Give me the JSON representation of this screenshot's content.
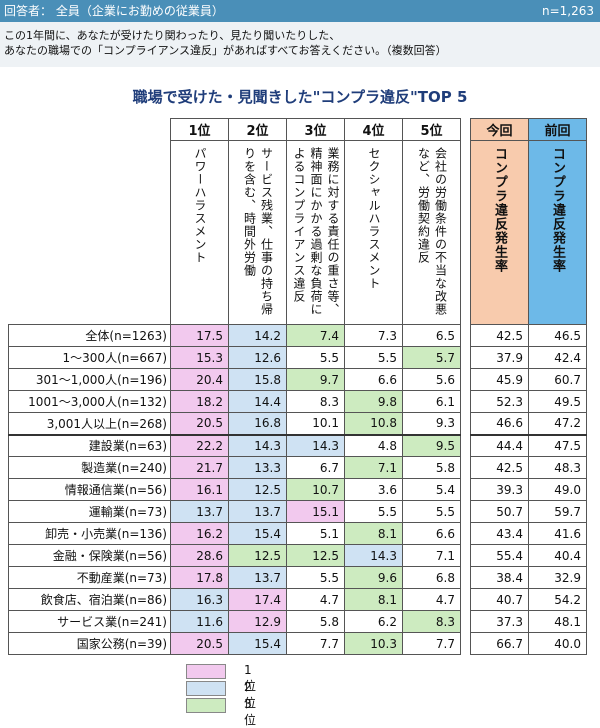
{
  "header": {
    "respondents": "回答者： 全員（企業にお勤めの従業員）",
    "n_total": "n=1,263"
  },
  "question": {
    "line1": "この1年間に、あなたが受けたり関わったり、見たり聞いたりした、",
    "line2": "あなたの職場での「コンプライアンス違反」があればすべてお答えください。（複数回答）"
  },
  "chart_data": {
    "type": "table",
    "title": "職場で受けた・見聞きした\"コンプラ違反\"TOP 5",
    "rank_headers": [
      "1位",
      "2位",
      "3位",
      "4位",
      "5位"
    ],
    "columns": [
      "パワーハラスメント",
      "サービス残業、仕事の持ち帰りを含む、時間外労働",
      "業務に対する責任の重さ等、精神面にかかる過剰な負荷によるコンプライアンス違反",
      "セクシャルハラスメント",
      "会社の労働条件の不当な改悪など、労働契約違反"
    ],
    "rate_headers": [
      "今回",
      "前回"
    ],
    "rate_labels": [
      "コンプラ違反発生率",
      "コンプラ違反発生率"
    ],
    "rows": [
      {
        "label": "全体(n=1263)",
        "values": [
          "17.5",
          "14.2",
          "7.4",
          "7.3",
          "6.5"
        ],
        "ranks": [
          1,
          2,
          3,
          0,
          0
        ],
        "now": "42.5",
        "prev": "46.5",
        "sep": false
      },
      {
        "label": "1～300人(n=667)",
        "values": [
          "15.3",
          "12.6",
          "5.5",
          "5.5",
          "5.7"
        ],
        "ranks": [
          1,
          2,
          0,
          0,
          3
        ],
        "now": "37.9",
        "prev": "42.4",
        "sep": false
      },
      {
        "label": "301～1,000人(n=196)",
        "values": [
          "20.4",
          "15.8",
          "9.7",
          "6.6",
          "5.6"
        ],
        "ranks": [
          1,
          2,
          3,
          0,
          0
        ],
        "now": "45.9",
        "prev": "60.7",
        "sep": false
      },
      {
        "label": "1001～3,000人(n=132)",
        "values": [
          "18.2",
          "14.4",
          "8.3",
          "9.8",
          "6.1"
        ],
        "ranks": [
          1,
          2,
          0,
          3,
          0
        ],
        "now": "52.3",
        "prev": "49.5",
        "sep": false
      },
      {
        "label": "3,001人以上(n=268)",
        "values": [
          "20.5",
          "16.8",
          "10.1",
          "10.8",
          "9.3"
        ],
        "ranks": [
          1,
          2,
          0,
          3,
          0
        ],
        "now": "46.6",
        "prev": "47.2",
        "sep": false
      },
      {
        "label": "建設業(n=63)",
        "values": [
          "22.2",
          "14.3",
          "14.3",
          "4.8",
          "9.5"
        ],
        "ranks": [
          1,
          2,
          2,
          0,
          3
        ],
        "now": "44.4",
        "prev": "47.5",
        "sep": true
      },
      {
        "label": "製造業(n=240)",
        "values": [
          "21.7",
          "13.3",
          "6.7",
          "7.1",
          "5.8"
        ],
        "ranks": [
          1,
          2,
          0,
          3,
          0
        ],
        "now": "42.5",
        "prev": "48.3",
        "sep": false
      },
      {
        "label": "情報通信業(n=56)",
        "values": [
          "16.1",
          "12.5",
          "10.7",
          "3.6",
          "5.4"
        ],
        "ranks": [
          1,
          2,
          3,
          0,
          0
        ],
        "now": "39.3",
        "prev": "49.0",
        "sep": false
      },
      {
        "label": "運輸業(n=73)",
        "values": [
          "13.7",
          "13.7",
          "15.1",
          "5.5",
          "5.5"
        ],
        "ranks": [
          2,
          2,
          1,
          0,
          0
        ],
        "now": "50.7",
        "prev": "59.7",
        "sep": false
      },
      {
        "label": "卸売・小売業(n=136)",
        "values": [
          "16.2",
          "15.4",
          "5.1",
          "8.1",
          "6.6"
        ],
        "ranks": [
          1,
          2,
          0,
          3,
          0
        ],
        "now": "43.4",
        "prev": "41.6",
        "sep": false
      },
      {
        "label": "金融・保険業(n=56)",
        "values": [
          "28.6",
          "12.5",
          "12.5",
          "14.3",
          "7.1"
        ],
        "ranks": [
          1,
          3,
          3,
          2,
          0
        ],
        "now": "55.4",
        "prev": "40.4",
        "sep": false
      },
      {
        "label": "不動産業(n=73)",
        "values": [
          "17.8",
          "13.7",
          "5.5",
          "9.6",
          "6.8"
        ],
        "ranks": [
          1,
          2,
          0,
          3,
          0
        ],
        "now": "38.4",
        "prev": "32.9",
        "sep": false
      },
      {
        "label": "飲食店、宿泊業(n=86)",
        "values": [
          "16.3",
          "17.4",
          "4.7",
          "8.1",
          "4.7"
        ],
        "ranks": [
          2,
          1,
          0,
          3,
          0
        ],
        "now": "40.7",
        "prev": "54.2",
        "sep": false
      },
      {
        "label": "サービス業(n=241)",
        "values": [
          "11.6",
          "12.9",
          "5.8",
          "6.2",
          "8.3"
        ],
        "ranks": [
          2,
          1,
          0,
          0,
          3
        ],
        "now": "37.3",
        "prev": "48.1",
        "sep": false
      },
      {
        "label": "国家公務(n=39)",
        "values": [
          "20.5",
          "15.4",
          "7.7",
          "10.3",
          "7.7"
        ],
        "ranks": [
          1,
          2,
          0,
          3,
          0
        ],
        "now": "66.7",
        "prev": "40.0",
        "sep": false
      }
    ],
    "legend": [
      "1位",
      "2位",
      "3位"
    ]
  },
  "colors": {
    "rank1": "#f2c9ee",
    "rank2": "#cfe2f3",
    "rank3": "#cdebc0",
    "now_header": "#f8cbad",
    "prev_header": "#6db9e8",
    "header_bar": "#4a8fb8",
    "title": "#1f3d7a"
  }
}
